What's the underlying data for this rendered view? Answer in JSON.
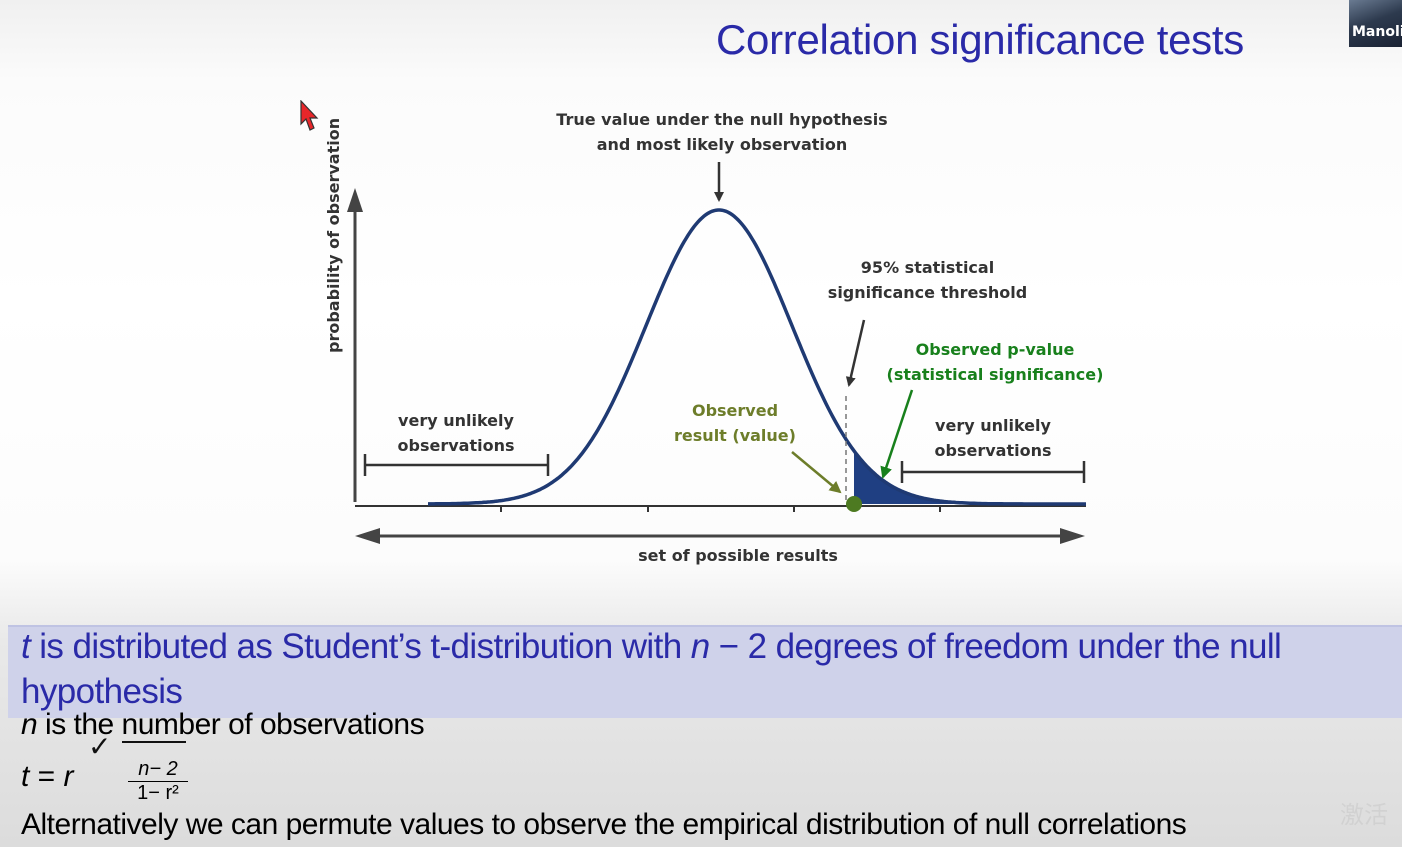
{
  "slide": {
    "title": "Correlation significance tests"
  },
  "webcam": {
    "name_label": "Manolis"
  },
  "figure": {
    "top_label_line1": "True value under the null hypothesis",
    "top_label_line2": "and most likely observation",
    "threshold_line1": "95% statistical",
    "threshold_line2": "significance threshold",
    "pvalue_line1": "Observed p-value",
    "pvalue_line2": "(statistical significance)",
    "observed_line1": "Observed",
    "observed_line2": "result (value)",
    "left_unlikely_line1": "very unlikely",
    "left_unlikely_line2": "observations",
    "right_unlikely_line1": "very unlikely",
    "right_unlikely_line2": "observations",
    "y_axis_label": "probability of observation",
    "x_axis_label": "set of possible results",
    "colors": {
      "curve": "#1f3a73",
      "tail_fill": "#1f3f82",
      "green_text": "#18801c",
      "olive_text": "#6d7d2a",
      "observed_point": "#4d7a21",
      "arrow": "#333333"
    }
  },
  "band": {
    "var_t": "t",
    "text_a": " is distributed as Student’s t-distribution with ",
    "var_n": "n",
    "text_b": " − 2 degrees of freedom under the null hypothesis"
  },
  "line_n": {
    "var_n": "n",
    "text": " is the number of observations"
  },
  "formula": {
    "lhs_t": "t",
    "equals": " = ",
    "rhs_r": "r",
    "numerator": "n− 2",
    "denominator": "1− r²"
  },
  "line_alt": {
    "text": "Alternatively we can permute values to observe the empirical distribution of null correlations"
  },
  "watermark": {
    "text": "激活"
  }
}
